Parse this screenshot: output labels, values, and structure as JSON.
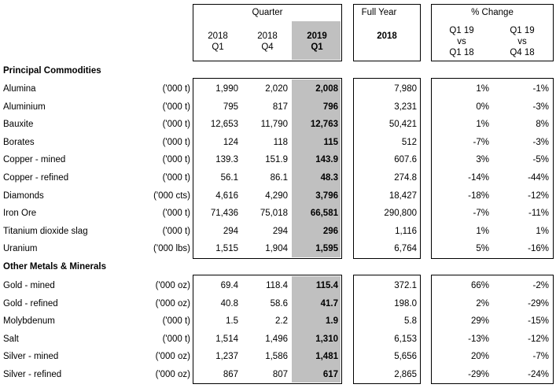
{
  "header": {
    "quarter_label": "Quarter",
    "full_year_label": "Full Year",
    "pct_change_label": "% Change",
    "col_2018q1": [
      "2018",
      "Q1"
    ],
    "col_2018q4": [
      "2018",
      "Q4"
    ],
    "col_2019q1": [
      "2019",
      "Q1"
    ],
    "col_fy": "2018",
    "col_chg1": [
      "Q1 19",
      "vs",
      "Q1 18"
    ],
    "col_chg2": [
      "Q1 19",
      "vs",
      "Q4 18"
    ]
  },
  "sections": [
    {
      "title": "Principal Commodities",
      "rows": [
        {
          "name": "Alumina",
          "unit": "('000 t)",
          "q1_18": "1,990",
          "q4_18": "2,020",
          "q1_19": "2,008",
          "fy18": "7,980",
          "chg_q1": "1%",
          "chg_q4": "-1%"
        },
        {
          "name": "Aluminium",
          "unit": "('000 t)",
          "q1_18": "795",
          "q4_18": "817",
          "q1_19": "796",
          "fy18": "3,231",
          "chg_q1": "0%",
          "chg_q4": "-3%"
        },
        {
          "name": "Bauxite",
          "unit": "('000 t)",
          "q1_18": "12,653",
          "q4_18": "11,790",
          "q1_19": "12,763",
          "fy18": "50,421",
          "chg_q1": "1%",
          "chg_q4": "8%"
        },
        {
          "name": "Borates",
          "unit": "('000 t)",
          "q1_18": "124",
          "q4_18": "118",
          "q1_19": "115",
          "fy18": "512",
          "chg_q1": "-7%",
          "chg_q4": "-3%"
        },
        {
          "name": "Copper - mined",
          "unit": "('000 t)",
          "q1_18": "139.3",
          "q4_18": "151.9",
          "q1_19": "143.9",
          "fy18": "607.6",
          "chg_q1": "3%",
          "chg_q4": "-5%"
        },
        {
          "name": "Copper - refined",
          "unit": "('000 t)",
          "q1_18": "56.1",
          "q4_18": "86.1",
          "q1_19": "48.3",
          "fy18": "274.8",
          "chg_q1": "-14%",
          "chg_q4": "-44%"
        },
        {
          "name": "Diamonds",
          "unit": "('000 cts)",
          "q1_18": "4,616",
          "q4_18": "4,290",
          "q1_19": "3,796",
          "fy18": "18,427",
          "chg_q1": "-18%",
          "chg_q4": "-12%"
        },
        {
          "name": "Iron Ore",
          "unit": "('000 t)",
          "q1_18": "71,436",
          "q4_18": "75,018",
          "q1_19": "66,581",
          "fy18": "290,800",
          "chg_q1": "-7%",
          "chg_q4": "-11%"
        },
        {
          "name": "Titanium dioxide slag",
          "unit": "('000 t)",
          "q1_18": "294",
          "q4_18": "294",
          "q1_19": "296",
          "fy18": "1,116",
          "chg_q1": "1%",
          "chg_q4": "1%"
        },
        {
          "name": "Uranium",
          "unit": "('000 lbs)",
          "q1_18": "1,515",
          "q4_18": "1,904",
          "q1_19": "1,595",
          "fy18": "6,764",
          "chg_q1": "5%",
          "chg_q4": "-16%"
        }
      ]
    },
    {
      "title": "Other Metals & Minerals",
      "rows": [
        {
          "name": "Gold - mined",
          "unit": "('000 oz)",
          "q1_18": "69.4",
          "q4_18": "118.4",
          "q1_19": "115.4",
          "fy18": "372.1",
          "chg_q1": "66%",
          "chg_q4": "-2%"
        },
        {
          "name": "Gold - refined",
          "unit": "('000 oz)",
          "q1_18": "40.8",
          "q4_18": "58.6",
          "q1_19": "41.7",
          "fy18": "198.0",
          "chg_q1": "2%",
          "chg_q4": "-29%"
        },
        {
          "name": "Molybdenum",
          "unit": "('000 t)",
          "q1_18": "1.5",
          "q4_18": "2.2",
          "q1_19": "1.9",
          "fy18": "5.8",
          "chg_q1": "29%",
          "chg_q4": "-15%"
        },
        {
          "name": "Salt",
          "unit": "('000 t)",
          "q1_18": "1,514",
          "q4_18": "1,496",
          "q1_19": "1,310",
          "fy18": "6,153",
          "chg_q1": "-13%",
          "chg_q4": "-12%"
        },
        {
          "name": "Silver - mined",
          "unit": "('000 oz)",
          "q1_18": "1,237",
          "q4_18": "1,586",
          "q1_19": "1,481",
          "fy18": "5,656",
          "chg_q1": "20%",
          "chg_q4": "-7%"
        },
        {
          "name": "Silver - refined",
          "unit": "('000 oz)",
          "q1_18": "867",
          "q4_18": "807",
          "q1_19": "617",
          "fy18": "2,865",
          "chg_q1": "-29%",
          "chg_q4": "-24%"
        }
      ]
    }
  ],
  "colors": {
    "highlight_column": "#c0c0c0",
    "border": "#000000"
  }
}
